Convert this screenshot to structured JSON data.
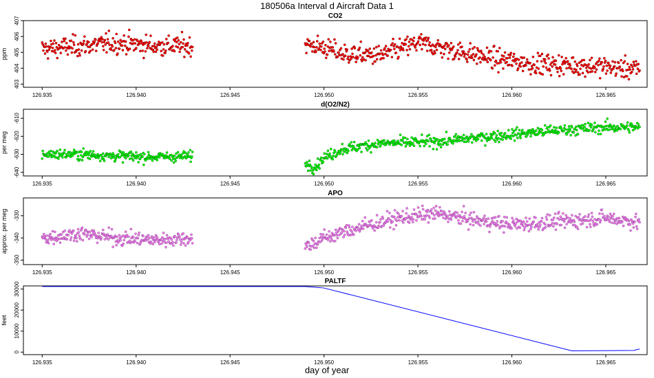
{
  "page": {
    "title": "180506a   Interval d Aircraft Data 1"
  },
  "xlabel": "day of year",
  "chart_data": [
    {
      "type": "scatter",
      "title": "CO2",
      "ylabel": "ppm",
      "xlim": [
        126.934,
        126.9672
      ],
      "ylim": [
        402.8,
        407.0
      ],
      "yticks": [
        403,
        404,
        405,
        406,
        407
      ],
      "xticks": [
        126.935,
        126.94,
        126.945,
        126.95,
        126.955,
        126.96,
        126.965
      ],
      "color": "#ff0000",
      "stroke": "#550000",
      "series": [
        {
          "x_start": 126.935,
          "x_end": 126.943,
          "n": 260,
          "trend": [
            [
              126.935,
              405.2
            ],
            [
              126.937,
              405.4
            ],
            [
              126.939,
              405.6
            ],
            [
              126.941,
              405.4
            ],
            [
              126.943,
              405.4
            ]
          ],
          "noise": 0.45
        },
        {
          "x_start": 126.949,
          "x_end": 126.9668,
          "n": 560,
          "trend": [
            [
              126.949,
              405.5
            ],
            [
              126.95,
              405.3
            ],
            [
              126.951,
              404.9
            ],
            [
              126.953,
              404.8
            ],
            [
              126.955,
              405.6
            ],
            [
              126.957,
              405.1
            ],
            [
              126.959,
              404.6
            ],
            [
              126.961,
              404.3
            ],
            [
              126.963,
              404.2
            ],
            [
              126.965,
              404.1
            ],
            [
              126.9668,
              403.9
            ]
          ],
          "noise": 0.45
        }
      ]
    },
    {
      "type": "scatter",
      "title": "d(O2/N2)",
      "ylabel": "per meg",
      "xlim": [
        126.934,
        126.9672
      ],
      "ylim": [
        -642,
        -605
      ],
      "yticks": [
        -640,
        -630,
        -620,
        -610
      ],
      "xticks": [
        126.935,
        126.94,
        126.945,
        126.95,
        126.955,
        126.96,
        126.965
      ],
      "color": "#00ff00",
      "stroke": "#005500",
      "series": [
        {
          "x_start": 126.935,
          "x_end": 126.943,
          "n": 260,
          "trend": [
            [
              126.935,
              -630
            ],
            [
              126.937,
              -630
            ],
            [
              126.939,
              -631
            ],
            [
              126.941,
              -631.5
            ],
            [
              126.943,
              -631
            ]
          ],
          "noise": 2.0
        },
        {
          "x_start": 126.949,
          "x_end": 126.9668,
          "n": 560,
          "trend": [
            [
              126.949,
              -635
            ],
            [
              126.9495,
              -637
            ],
            [
              126.95,
              -632
            ],
            [
              126.951,
              -627
            ],
            [
              126.953,
              -624
            ],
            [
              126.956,
              -623
            ],
            [
              126.959,
              -620
            ],
            [
              126.962,
              -617
            ],
            [
              126.965,
              -615
            ],
            [
              126.9668,
              -615
            ]
          ],
          "noise": 2.2
        }
      ]
    },
    {
      "type": "scatter",
      "title": "APO",
      "ylabel": "approx. per meg",
      "xlim": [
        126.934,
        126.9672
      ],
      "ylim": [
        -352,
        -322
      ],
      "yticks": [
        -350,
        -340,
        -330
      ],
      "xticks": [
        126.935,
        126.94,
        126.945,
        126.95,
        126.955,
        126.96,
        126.965
      ],
      "color": "#ee82ee",
      "stroke": "#7a2a7a",
      "series": [
        {
          "x_start": 126.935,
          "x_end": 126.943,
          "n": 260,
          "trend": [
            [
              126.935,
              -340
            ],
            [
              126.937,
              -338
            ],
            [
              126.939,
              -340
            ],
            [
              126.941,
              -341
            ],
            [
              126.943,
              -340
            ]
          ],
          "noise": 2.3
        },
        {
          "x_start": 126.949,
          "x_end": 126.9668,
          "n": 560,
          "trend": [
            [
              126.949,
              -344
            ],
            [
              126.95,
              -340
            ],
            [
              126.952,
              -335
            ],
            [
              126.954,
              -331
            ],
            [
              126.956,
              -329
            ],
            [
              126.958,
              -332
            ],
            [
              126.96,
              -334
            ],
            [
              126.962,
              -333
            ],
            [
              126.965,
              -331
            ],
            [
              126.9668,
              -333
            ]
          ],
          "noise": 2.4
        }
      ]
    },
    {
      "type": "line",
      "title": "PALTF",
      "ylabel": "feet",
      "xlim": [
        126.934,
        126.9672
      ],
      "ylim": [
        -1200,
        31500
      ],
      "yticks": [
        0,
        10000,
        20000,
        30000
      ],
      "xticks": [
        126.935,
        126.94,
        126.945,
        126.95,
        126.955,
        126.96,
        126.965
      ],
      "color": "#0000ff",
      "x": [
        126.935,
        126.943,
        126.949,
        126.9495,
        126.95,
        126.9632,
        126.9665,
        126.9668
      ],
      "y": [
        31200,
        31200,
        31200,
        30900,
        30500,
        600,
        800,
        1500
      ]
    }
  ]
}
